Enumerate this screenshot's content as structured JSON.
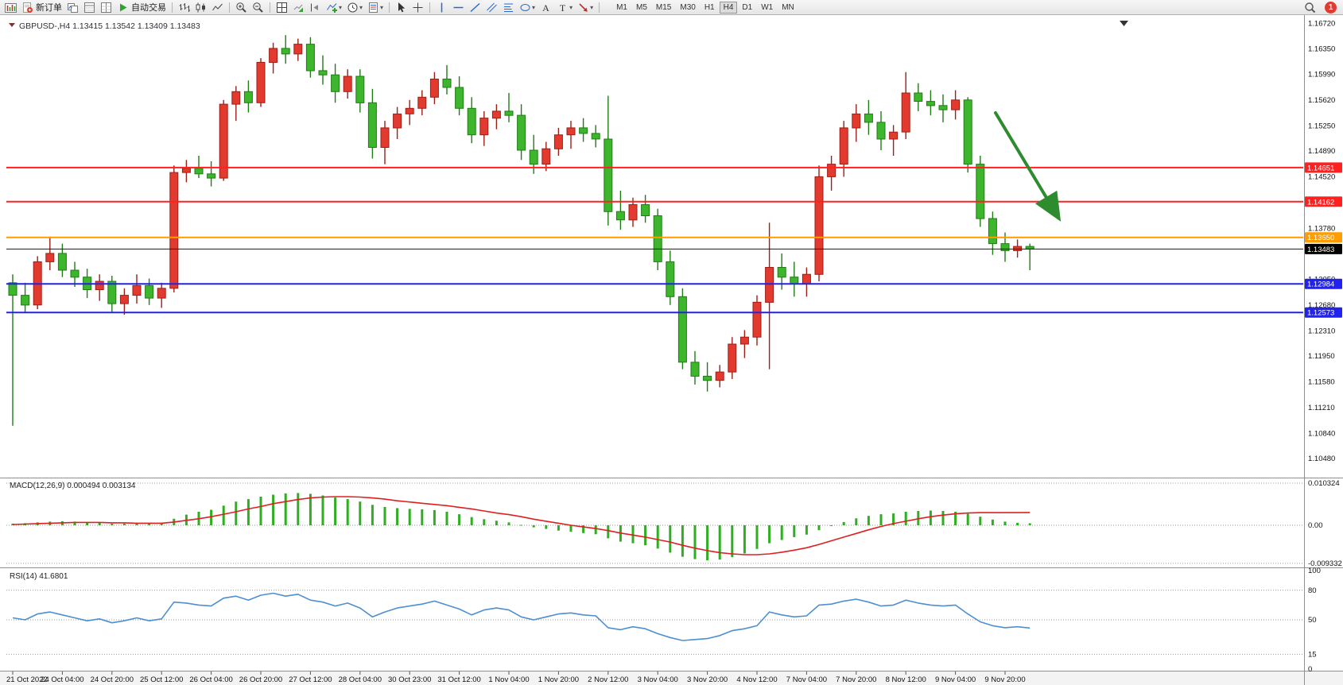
{
  "toolbar": {
    "items": [
      {
        "name": "chart-window-icon",
        "icon": "chart-window",
        "type": "icon"
      },
      {
        "name": "new-order-button",
        "icon": "doc-plus",
        "label": "新订单",
        "type": "button"
      },
      {
        "name": "charts-profile-icon",
        "icon": "profiles",
        "type": "icon"
      },
      {
        "name": "market-watch-icon",
        "icon": "market-watch",
        "type": "icon"
      },
      {
        "name": "data-window-icon",
        "icon": "data-window",
        "type": "icon"
      },
      {
        "name": "autotrading-button",
        "icon": "play",
        "label": "自动交易",
        "type": "button"
      },
      {
        "type": "sep"
      },
      {
        "name": "bar-chart-icon",
        "icon": "bars-chart",
        "type": "icon"
      },
      {
        "name": "candlestick-chart-icon",
        "icon": "candles-chart",
        "type": "icon"
      },
      {
        "name": "line-chart-icon",
        "icon": "line-chart",
        "type": "icon"
      },
      {
        "type": "sep"
      },
      {
        "name": "zoom-in-icon",
        "icon": "zoom-in",
        "type": "icon"
      },
      {
        "name": "zoom-out-icon",
        "icon": "zoom-out",
        "type": "icon"
      },
      {
        "type": "sep"
      },
      {
        "name": "tile-windows-icon",
        "icon": "tile",
        "type": "icon"
      },
      {
        "name": "auto-scroll-icon",
        "icon": "auto-scroll",
        "type": "icon"
      },
      {
        "name": "chart-shift-icon",
        "icon": "chart-shift",
        "type": "icon"
      },
      {
        "name": "indicators-icon",
        "icon": "indicators",
        "type": "icon",
        "dropdown": true
      },
      {
        "name": "periods-icon",
        "icon": "periods",
        "type": "icon",
        "dropdown": true
      },
      {
        "name": "templates-icon",
        "icon": "templates",
        "type": "icon",
        "dropdown": true
      },
      {
        "type": "sep"
      },
      {
        "name": "cursor-icon",
        "icon": "cursor",
        "type": "icon"
      },
      {
        "name": "crosshair-icon",
        "icon": "crosshair",
        "type": "icon"
      },
      {
        "type": "sep"
      },
      {
        "name": "vertical-line-icon",
        "icon": "vline",
        "type": "icon"
      },
      {
        "name": "horizontal-line-icon",
        "icon": "hline",
        "type": "icon"
      },
      {
        "name": "trendline-icon",
        "icon": "trendline",
        "type": "icon"
      },
      {
        "name": "equidistant-channel-icon",
        "icon": "channel",
        "type": "icon"
      },
      {
        "name": "fibonacci-icon",
        "icon": "fibonacci",
        "type": "icon"
      },
      {
        "name": "shapes-icon",
        "icon": "shapes",
        "type": "icon",
        "dropdown": true
      },
      {
        "name": "text-icon",
        "icon": "text",
        "type": "icon"
      },
      {
        "name": "text-label-icon",
        "icon": "text-label",
        "type": "icon",
        "dropdown": true
      },
      {
        "name": "arrows-icon",
        "icon": "arrows",
        "type": "icon",
        "dropdown": true
      },
      {
        "type": "sep"
      }
    ],
    "timeframes": [
      "M1",
      "M5",
      "M15",
      "M30",
      "H1",
      "H4",
      "D1",
      "W1",
      "MN"
    ],
    "active_timeframe": "H4",
    "notification_count": "1"
  },
  "chart": {
    "header": "GBPUSD-,H4 1.13415 1.13542 1.13409 1.13483"
  },
  "chart_data": {
    "type": "candlestick",
    "symbol": "GBPUSD-",
    "timeframe": "H4",
    "open": "1.13415",
    "high": "1.13542",
    "low": "1.13409",
    "close": "1.13483",
    "up_color": "#e23a2e",
    "up_border": "#9e1f16",
    "down_color": "#3db52c",
    "down_border": "#1f7d15",
    "candles": [
      [
        1.13,
        1.1312,
        1.1095,
        1.1282
      ],
      [
        1.1282,
        1.13,
        1.1258,
        1.1268
      ],
      [
        1.1268,
        1.1338,
        1.1262,
        1.133
      ],
      [
        1.133,
        1.1366,
        1.1318,
        1.1342
      ],
      [
        1.1342,
        1.1356,
        1.1308,
        1.1318
      ],
      [
        1.1318,
        1.133,
        1.1294,
        1.1308
      ],
      [
        1.1308,
        1.132,
        1.1278,
        1.129
      ],
      [
        1.129,
        1.1312,
        1.1274,
        1.1302
      ],
      [
        1.1302,
        1.131,
        1.1258,
        1.127
      ],
      [
        1.127,
        1.1292,
        1.1254,
        1.1282
      ],
      [
        1.1282,
        1.1312,
        1.127,
        1.1296
      ],
      [
        1.1296,
        1.1306,
        1.1268,
        1.1278
      ],
      [
        1.1278,
        1.13,
        1.1264,
        1.1292
      ],
      [
        1.1292,
        1.1468,
        1.1286,
        1.1458
      ],
      [
        1.1458,
        1.1476,
        1.1444,
        1.1464
      ],
      [
        1.1464,
        1.1482,
        1.145,
        1.1456
      ],
      [
        1.1456,
        1.1474,
        1.1438,
        1.145
      ],
      [
        1.145,
        1.1562,
        1.1446,
        1.1556
      ],
      [
        1.1556,
        1.1582,
        1.1532,
        1.1574
      ],
      [
        1.1574,
        1.159,
        1.1544,
        1.1558
      ],
      [
        1.1558,
        1.1622,
        1.1552,
        1.1616
      ],
      [
        1.1616,
        1.1644,
        1.16,
        1.1636
      ],
      [
        1.1636,
        1.1655,
        1.1614,
        1.1628
      ],
      [
        1.1628,
        1.165,
        1.1618,
        1.1642
      ],
      [
        1.1642,
        1.1652,
        1.1594,
        1.1604
      ],
      [
        1.1604,
        1.1626,
        1.1584,
        1.1598
      ],
      [
        1.1598,
        1.1614,
        1.1558,
        1.1574
      ],
      [
        1.1574,
        1.1606,
        1.1564,
        1.1596
      ],
      [
        1.1596,
        1.1606,
        1.1544,
        1.1558
      ],
      [
        1.1558,
        1.1578,
        1.1478,
        1.1494
      ],
      [
        1.1494,
        1.1532,
        1.147,
        1.1522
      ],
      [
        1.1522,
        1.1552,
        1.1506,
        1.1542
      ],
      [
        1.1542,
        1.1562,
        1.1526,
        1.155
      ],
      [
        1.155,
        1.1576,
        1.154,
        1.1566
      ],
      [
        1.1566,
        1.1602,
        1.1556,
        1.1592
      ],
      [
        1.1592,
        1.1612,
        1.157,
        1.158
      ],
      [
        1.158,
        1.1596,
        1.154,
        1.155
      ],
      [
        1.155,
        1.1566,
        1.15,
        1.1512
      ],
      [
        1.1512,
        1.1546,
        1.1496,
        1.1536
      ],
      [
        1.1536,
        1.1556,
        1.152,
        1.1546
      ],
      [
        1.1546,
        1.1572,
        1.153,
        1.154
      ],
      [
        1.154,
        1.1556,
        1.1476,
        1.149
      ],
      [
        1.149,
        1.1512,
        1.1456,
        1.147
      ],
      [
        1.147,
        1.1502,
        1.146,
        1.1492
      ],
      [
        1.1492,
        1.1522,
        1.1482,
        1.1512
      ],
      [
        1.1512,
        1.1532,
        1.1492,
        1.1522
      ],
      [
        1.1522,
        1.1536,
        1.1502,
        1.1514
      ],
      [
        1.1514,
        1.1526,
        1.1494,
        1.1506
      ],
      [
        1.1506,
        1.1568,
        1.1382,
        1.1402
      ],
      [
        1.1402,
        1.1432,
        1.1376,
        1.139
      ],
      [
        1.139,
        1.1422,
        1.138,
        1.1412
      ],
      [
        1.1412,
        1.1426,
        1.1386,
        1.1396
      ],
      [
        1.1396,
        1.1406,
        1.1318,
        1.133
      ],
      [
        1.133,
        1.1346,
        1.1268,
        1.128
      ],
      [
        1.128,
        1.1292,
        1.1176,
        1.1186
      ],
      [
        1.1186,
        1.1202,
        1.1154,
        1.1166
      ],
      [
        1.1166,
        1.1186,
        1.1144,
        1.116
      ],
      [
        1.116,
        1.1182,
        1.115,
        1.1172
      ],
      [
        1.1172,
        1.1222,
        1.1162,
        1.1212
      ],
      [
        1.1212,
        1.1232,
        1.1192,
        1.1222
      ],
      [
        1.1222,
        1.1282,
        1.121,
        1.1272
      ],
      [
        1.1272,
        1.1386,
        1.1176,
        1.1322
      ],
      [
        1.1322,
        1.1342,
        1.129,
        1.1308
      ],
      [
        1.1308,
        1.133,
        1.128,
        1.1298
      ],
      [
        1.1298,
        1.1322,
        1.128,
        1.1312
      ],
      [
        1.1312,
        1.1468,
        1.1302,
        1.1452
      ],
      [
        1.1452,
        1.1482,
        1.1432,
        1.147
      ],
      [
        1.147,
        1.1532,
        1.1452,
        1.1522
      ],
      [
        1.1522,
        1.1556,
        1.1502,
        1.1542
      ],
      [
        1.1542,
        1.1562,
        1.1512,
        1.153
      ],
      [
        1.153,
        1.1546,
        1.149,
        1.1506
      ],
      [
        1.1506,
        1.1526,
        1.1482,
        1.1516
      ],
      [
        1.1516,
        1.1602,
        1.1506,
        1.1572
      ],
      [
        1.1572,
        1.1586,
        1.1546,
        1.156
      ],
      [
        1.156,
        1.1576,
        1.154,
        1.1554
      ],
      [
        1.1554,
        1.157,
        1.153,
        1.1548
      ],
      [
        1.1548,
        1.1576,
        1.1534,
        1.1562
      ],
      [
        1.1562,
        1.1566,
        1.1458,
        1.147
      ],
      [
        1.147,
        1.1482,
        1.138,
        1.1392
      ],
      [
        1.1392,
        1.1402,
        1.134,
        1.1356
      ],
      [
        1.1356,
        1.1372,
        1.133,
        1.1346
      ],
      [
        1.1346,
        1.1362,
        1.1336,
        1.1352
      ],
      [
        1.1352,
        1.1356,
        1.1318,
        1.13483
      ]
    ],
    "x_tick_every": 4,
    "x_labels": [
      "21 Oct 2022",
      "24 Oct 04:00",
      "24 Oct 20:00",
      "25 Oct 12:00",
      "26 Oct 04:00",
      "26 Oct 20:00",
      "27 Oct 12:00",
      "28 Oct 04:00",
      "30 Oct 23:00",
      "31 Oct 12:00",
      "1 Nov 04:00",
      "1 Nov 20:00",
      "2 Nov 12:00",
      "3 Nov 04:00",
      "3 Nov 20:00",
      "4 Nov 12:00",
      "7 Nov 04:00",
      "7 Nov 20:00",
      "8 Nov 12:00",
      "9 Nov 04:00",
      "9 Nov 20:00"
    ],
    "y_axis_labels": [
      "1.16720",
      "1.16350",
      "1.15990",
      "1.15620",
      "1.15250",
      "1.14890",
      "1.14520",
      "1.13780",
      "1.13050",
      "1.12680",
      "1.12310",
      "1.11950",
      "1.11580",
      "1.11210",
      "1.10840",
      "1.10480"
    ],
    "horizontal_lines": [
      {
        "name": "resistance-line-1",
        "label": "1.14651",
        "color": "#ff2020",
        "width": 2
      },
      {
        "name": "resistance-line-2",
        "label": "1.14162",
        "color": "#ff2020",
        "width": 2
      },
      {
        "name": "pivot-line",
        "label": "1.13650",
        "color": "#ff9c00",
        "width": 2
      },
      {
        "name": "current-price-line",
        "label": "1.13483",
        "color": "#1a1a1a",
        "width": 1,
        "badge_bg": "#000000"
      },
      {
        "name": "support-line-1",
        "label": "1.12984",
        "color": "#2222ee",
        "width": 2
      },
      {
        "name": "support-line-2",
        "label": "1.12573",
        "color": "#2222ee",
        "width": 2
      }
    ],
    "annotations": [
      {
        "name": "trend-arrow",
        "type": "arrow",
        "direction": "down-right",
        "color": "#2e8b2e"
      }
    ],
    "indicators": {
      "macd": {
        "label": "MACD(12,26,9) 0.000494 0.003134",
        "main_value": "0.000494",
        "signal_value": "0.003134",
        "axis_labels": [
          "0.010324",
          "0.00",
          "-0.009332"
        ],
        "histogram_color": "#2fae22",
        "signal_color": "#e02020",
        "histogram": [
          0.0004,
          0.0005,
          0.0007,
          0.0009,
          0.001,
          0.0009,
          0.0007,
          0.0006,
          0.0004,
          0.0004,
          0.0005,
          0.0005,
          0.0006,
          0.0016,
          0.0026,
          0.0033,
          0.0038,
          0.0048,
          0.0058,
          0.0064,
          0.007,
          0.0075,
          0.0078,
          0.0079,
          0.0077,
          0.0073,
          0.0068,
          0.0064,
          0.0058,
          0.005,
          0.0045,
          0.0042,
          0.004,
          0.0039,
          0.0037,
          0.0033,
          0.0027,
          0.002,
          0.0015,
          0.0011,
          0.0007,
          0.0001,
          -0.0005,
          -0.0009,
          -0.0013,
          -0.0016,
          -0.0019,
          -0.0022,
          -0.0032,
          -0.004,
          -0.0044,
          -0.0049,
          -0.0057,
          -0.0067,
          -0.0077,
          -0.0083,
          -0.0086,
          -0.0084,
          -0.0078,
          -0.0069,
          -0.0058,
          -0.0044,
          -0.0036,
          -0.0029,
          -0.0023,
          -0.0012,
          -0.0002,
          0.0008,
          0.0017,
          0.0023,
          0.0027,
          0.0029,
          0.0033,
          0.0035,
          0.0036,
          0.0035,
          0.0033,
          0.0028,
          0.0021,
          0.0014,
          0.0009,
          0.0006,
          0.000494
        ],
        "signal": [
          0.0002,
          0.0003,
          0.0004,
          0.0005,
          0.0006,
          0.0007,
          0.0007,
          0.0007,
          0.0006,
          0.0006,
          0.0005,
          0.0005,
          0.0005,
          0.0008,
          0.0012,
          0.0016,
          0.0021,
          0.0027,
          0.0033,
          0.004,
          0.0046,
          0.0053,
          0.0058,
          0.0063,
          0.0067,
          0.0069,
          0.007,
          0.007,
          0.0069,
          0.0067,
          0.0064,
          0.006,
          0.0057,
          0.0054,
          0.0051,
          0.0048,
          0.0044,
          0.004,
          0.0035,
          0.003,
          0.0026,
          0.0021,
          0.0015,
          0.001,
          0.0005,
          0.0,
          -0.0004,
          -0.0008,
          -0.0013,
          -0.0019,
          -0.0024,
          -0.0029,
          -0.0035,
          -0.0041,
          -0.0049,
          -0.0056,
          -0.0062,
          -0.0067,
          -0.007,
          -0.0072,
          -0.0072,
          -0.007,
          -0.0066,
          -0.0061,
          -0.0055,
          -0.0047,
          -0.0038,
          -0.0029,
          -0.002,
          -0.0011,
          -0.0003,
          0.0004,
          0.001,
          0.0016,
          0.0021,
          0.0025,
          0.0028,
          0.003,
          0.0031,
          0.0031,
          0.0031,
          0.0031,
          0.003134
        ]
      },
      "rsi": {
        "label": "RSI(14) 41.6801",
        "current_value": "41.6801",
        "axis_labels": [
          "100",
          "80",
          "50",
          "15",
          "0"
        ],
        "levels": [
          80,
          50,
          15
        ],
        "line_color": "#4d8fd0",
        "values": [
          52,
          50,
          56,
          58,
          55,
          52,
          49,
          51,
          47,
          49,
          52,
          49,
          51,
          68,
          67,
          65,
          64,
          72,
          74,
          70,
          75,
          77,
          74,
          76,
          70,
          68,
          64,
          67,
          62,
          53,
          58,
          62,
          64,
          66,
          69,
          65,
          61,
          55,
          60,
          62,
          60,
          53,
          50,
          53,
          56,
          57,
          55,
          54,
          42,
          40,
          43,
          41,
          36,
          32,
          29,
          30,
          31,
          34,
          39,
          41,
          44,
          58,
          55,
          53,
          54,
          65,
          66,
          69,
          71,
          68,
          64,
          65,
          70,
          67,
          65,
          64,
          65,
          56,
          48,
          44,
          42,
          43,
          41.68
        ]
      }
    }
  }
}
